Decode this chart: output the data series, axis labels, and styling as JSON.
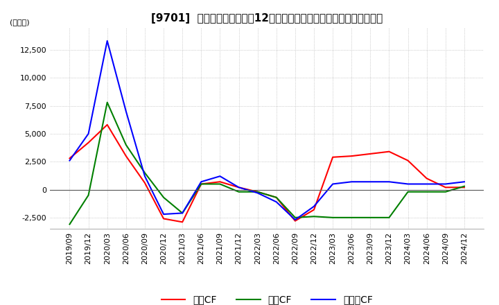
{
  "title": "[9701]  キャッシュフローだ12か月移動合計の対前年同期増減額の推移",
  "ylabel": "(百万円)",
  "ylim": [
    -3500,
    14500
  ],
  "yticks": [
    -2500,
    0,
    2500,
    5000,
    7500,
    10000,
    12500
  ],
  "legend": [
    "営業CF",
    "投資CF",
    "フリーCF"
  ],
  "legend_colors": [
    "#ff0000",
    "#008000",
    "#0000ff"
  ],
  "dates": [
    "2019/09",
    "2019/12",
    "2020/03",
    "2020/06",
    "2020/09",
    "2020/12",
    "2021/03",
    "2021/06",
    "2021/09",
    "2021/12",
    "2022/03",
    "2022/06",
    "2022/09",
    "2022/12",
    "2023/03",
    "2023/06",
    "2023/09",
    "2023/12",
    "2024/03",
    "2024/06",
    "2024/09",
    "2024/12"
  ],
  "operating_cf": [
    2800,
    4200,
    5800,
    3000,
    600,
    -2600,
    -2900,
    500,
    700,
    200,
    -200,
    -700,
    -2800,
    -1800,
    2900,
    3000,
    3200,
    3400,
    2600,
    1000,
    200,
    200
  ],
  "investing_cf": [
    -3100,
    -500,
    7800,
    4000,
    1500,
    -700,
    -2100,
    500,
    500,
    -200,
    -200,
    -700,
    -2500,
    -2400,
    -2500,
    -2500,
    -2500,
    -2500,
    -200,
    -200,
    -200,
    300
  ],
  "free_cf": [
    2600,
    5000,
    13300,
    7000,
    1200,
    -2200,
    -2100,
    700,
    1200,
    200,
    -300,
    -1100,
    -2700,
    -1500,
    500,
    700,
    700,
    700,
    500,
    500,
    500,
    700
  ],
  "background_color": "#ffffff",
  "grid_color": "#aaaaaa",
  "title_fontsize": 11,
  "axis_fontsize": 8
}
